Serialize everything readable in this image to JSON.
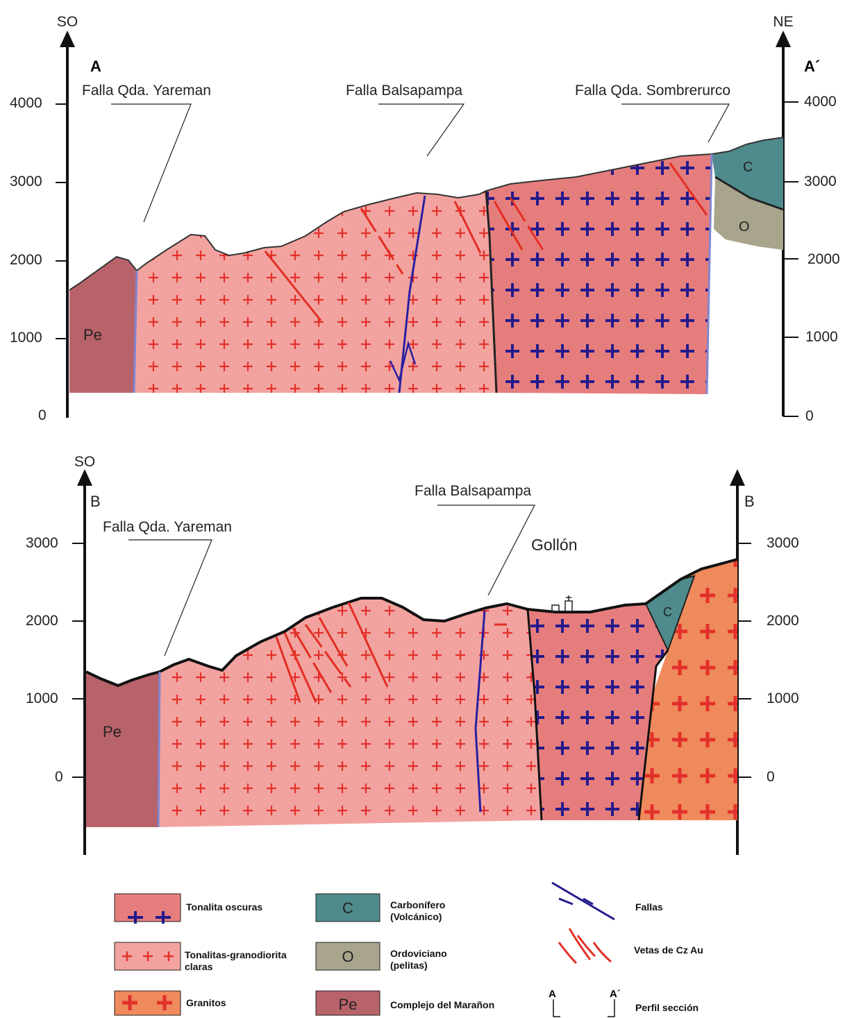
{
  "sections": [
    {
      "left_direction": "SO",
      "right_direction": "NE",
      "left_label": "A",
      "right_label": "A´",
      "left_ticks": [
        4000,
        3000,
        2000,
        1000,
        0
      ],
      "right_ticks": [
        4000,
        3000,
        2000,
        1000,
        0
      ],
      "faults": [
        "Falla Qda. Yareman",
        "Falla Balsapampa",
        "Falla Qda. Sombrerurco"
      ],
      "units": [
        "Pe",
        "C",
        "O"
      ]
    },
    {
      "left_direction": "SO",
      "left_label": "B",
      "right_label": "B",
      "left_ticks": [
        3000,
        2000,
        1000,
        0
      ],
      "right_ticks": [
        3000,
        2000,
        1000,
        0
      ],
      "faults": [
        "Falla Qda. Yareman",
        "Falla Balsapampa"
      ],
      "place": "Gollón",
      "units": [
        "Pe",
        "C"
      ]
    }
  ],
  "legend": [
    {
      "label": [
        "Tonalita oscuras"
      ]
    },
    {
      "symbol": "C",
      "label": [
        "Carbonífero",
        "(Volcánico)"
      ]
    },
    {
      "label": [
        "Fallas"
      ]
    },
    {
      "label": [
        "Tonalitas-granodiorita",
        "claras"
      ]
    },
    {
      "symbol": "O",
      "label": [
        "Ordoviciano",
        "(pelitas)"
      ]
    },
    {
      "label": [
        "Vetas de Cz Au"
      ]
    },
    {
      "label": [
        "Granitos"
      ]
    },
    {
      "symbol": "Pe",
      "label": [
        "Complejo del Marañon"
      ]
    },
    {
      "symbols": [
        "A",
        "A´"
      ],
      "label": [
        "Perfil sección"
      ]
    }
  ]
}
